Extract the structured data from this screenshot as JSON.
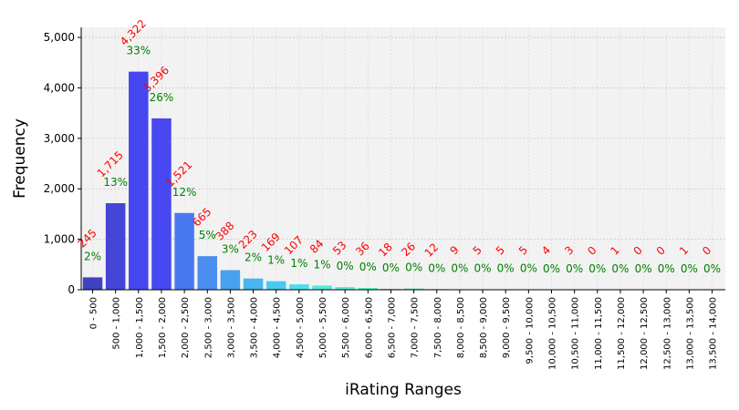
{
  "chart_data": {
    "type": "bar",
    "xlabel": "iRating Ranges",
    "ylabel": "Frequency",
    "ylim": [
      0,
      5200
    ],
    "yticks": [
      0,
      1000,
      2000,
      3000,
      4000,
      5000
    ],
    "ytick_labels": [
      "0",
      "1,000",
      "2,000",
      "3,000",
      "4,000",
      "5,000"
    ],
    "grid": true,
    "categories": [
      "0 - 500",
      "500 - 1,000",
      "1,000 - 1,500",
      "1,500 - 2,000",
      "2,000 - 2,500",
      "2,500 - 3,000",
      "3,000 - 3,500",
      "3,500 - 4,000",
      "4,000 - 4,500",
      "4,500 - 5,000",
      "5,000 - 5,500",
      "5,500 - 6,000",
      "6,000 - 6,500",
      "6,500 - 7,000",
      "7,000 - 7,500",
      "7,500 - 8,000",
      "8,000 - 8,500",
      "8,500 - 9,000",
      "9,000 - 9,500",
      "9,500 - 10,000",
      "10,000 - 10,500",
      "10,500 - 11,000",
      "11,000 - 11,500",
      "11,500 - 12,000",
      "12,000 - 12,500",
      "12,500 - 13,000",
      "13,000 - 13,500",
      "13,500 - 14,000"
    ],
    "values": [
      245,
      1715,
      4322,
      3396,
      1521,
      665,
      388,
      223,
      169,
      107,
      84,
      53,
      36,
      18,
      26,
      12,
      9,
      5,
      5,
      5,
      4,
      3,
      0,
      1,
      0,
      0,
      1,
      0
    ],
    "count_labels": [
      "245",
      "1,715",
      "4,322",
      "3,396",
      "1,521",
      "665",
      "388",
      "223",
      "169",
      "107",
      "84",
      "53",
      "36",
      "18",
      "26",
      "12",
      "9",
      "5",
      "5",
      "5",
      "4",
      "3",
      "0",
      "1",
      "0",
      "0",
      "1",
      "0"
    ],
    "percent_labels": [
      "2%",
      "13%",
      "33%",
      "26%",
      "12%",
      "5%",
      "3%",
      "2%",
      "1%",
      "1%",
      "1%",
      "0%",
      "0%",
      "0%",
      "0%",
      "0%",
      "0%",
      "0%",
      "0%",
      "0%",
      "0%",
      "0%",
      "0%",
      "0%",
      "0%",
      "0%",
      "0%",
      "0%"
    ],
    "bar_colors": [
      "#4040c0",
      "#4545d8",
      "#4646f0",
      "#4848f2",
      "#4a78f0",
      "#4a8ef0",
      "#4aa0f0",
      "#4ab4f0",
      "#4ac8f0",
      "#50dcef",
      "#55e8e0",
      "#58ecd4",
      "#5cefc8",
      "#60f0bc",
      "#64f0b0",
      "#68f0a4",
      "#6cf098",
      "#70f08c",
      "#74f080",
      "#78f074",
      "#7cf068",
      "#80f05c",
      "#84f050",
      "#88f048",
      "#8cf040",
      "#90f038",
      "#94f030",
      "#98f028"
    ],
    "count_label_color": "#ff0000",
    "percent_label_color": "#008000",
    "plot_background": "#f2f2f2"
  }
}
